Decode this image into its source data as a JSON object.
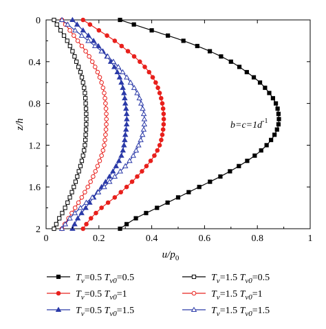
{
  "chart_data": {
    "type": "line",
    "xlabel": "u/p0",
    "xlabel_main": "u/p",
    "xlabel_sub": "0",
    "ylabel": "z/h",
    "xlim": [
      0,
      1
    ],
    "ylim": [
      0,
      2
    ],
    "y_inverted": true,
    "xticks": [
      0,
      0.2,
      0.4,
      0.6,
      0.8,
      1
    ],
    "xtick_labels": [
      "0",
      "0.2",
      "0.4",
      "0.6",
      "0.8",
      "1"
    ],
    "yticks": [
      0,
      0.4,
      0.8,
      1.2,
      1.6,
      2
    ],
    "ytick_labels": [
      "0",
      "0.4",
      "0.8",
      "1.2",
      "1.6",
      "2"
    ],
    "annotation": "b=c=1d-1",
    "annotation_main": "b=c=1d",
    "annotation_sup": "-1",
    "grid": false,
    "legend_position": "bottom, below plot, two columns",
    "series": [
      {
        "name": "Tv=0.5 Tv0=0.5",
        "legend_a": "T",
        "legend_a_sub": "v",
        "legend_a_val": "=0.5",
        "legend_b": "T",
        "legend_b_sub": "v0",
        "legend_b_val": "=0.5",
        "color": "#000000",
        "marker": "square-filled",
        "z": [
          0,
          0.1,
          0.2,
          0.3,
          0.4,
          0.5,
          0.6,
          0.7,
          0.8,
          0.9,
          1.0,
          1.1,
          1.2,
          1.3,
          1.4,
          1.5,
          1.6,
          1.7,
          1.8,
          1.9,
          2.0
        ],
        "u": [
          0.28,
          0.4,
          0.52,
          0.62,
          0.7,
          0.76,
          0.81,
          0.845,
          0.87,
          0.88,
          0.88,
          0.865,
          0.835,
          0.79,
          0.73,
          0.66,
          0.58,
          0.5,
          0.42,
          0.34,
          0.28
        ]
      },
      {
        "name": "Tv=0.5 Tv0=1",
        "legend_a": "T",
        "legend_a_sub": "v",
        "legend_a_val": "=0.5",
        "legend_b": "T",
        "legend_b_sub": "v0",
        "legend_b_val": "=1",
        "color": "#e8201c",
        "marker": "circle-filled",
        "z": [
          0,
          0.1,
          0.2,
          0.3,
          0.4,
          0.5,
          0.6,
          0.7,
          0.8,
          0.9,
          1.0,
          1.1,
          1.2,
          1.3,
          1.4,
          1.5,
          1.6,
          1.7,
          1.8,
          1.9,
          2.0
        ],
        "u": [
          0.14,
          0.2,
          0.26,
          0.31,
          0.355,
          0.39,
          0.415,
          0.43,
          0.44,
          0.445,
          0.445,
          0.44,
          0.43,
          0.41,
          0.38,
          0.345,
          0.305,
          0.26,
          0.21,
          0.17,
          0.14
        ]
      },
      {
        "name": "Tv=0.5 Tv0=1.5",
        "legend_a": "T",
        "legend_a_sub": "v",
        "legend_a_val": "=0.5",
        "legend_b": "T",
        "legend_b_sub": "v0",
        "legend_b_val": "=1.5",
        "color": "#2b3aa8",
        "marker": "triangle-filled",
        "z": [
          0,
          0.1,
          0.2,
          0.3,
          0.4,
          0.5,
          0.6,
          0.7,
          0.8,
          0.9,
          1.0,
          1.1,
          1.2,
          1.3,
          1.4,
          1.5,
          1.6,
          1.7,
          1.8,
          1.9,
          2.0
        ],
        "u": [
          0.1,
          0.14,
          0.18,
          0.215,
          0.245,
          0.27,
          0.285,
          0.295,
          0.3,
          0.305,
          0.305,
          0.3,
          0.295,
          0.285,
          0.265,
          0.24,
          0.21,
          0.18,
          0.15,
          0.12,
          0.1
        ]
      },
      {
        "name": "Tv=1.5 Tv0=0.5",
        "legend_a": "T",
        "legend_a_sub": "v",
        "legend_a_val": "=1.5",
        "legend_b": "T",
        "legend_b_sub": "v0",
        "legend_b_val": "=0.5",
        "color": "#000000",
        "marker": "square-open",
        "z": [
          0,
          0.1,
          0.2,
          0.3,
          0.4,
          0.5,
          0.6,
          0.7,
          0.8,
          0.9,
          1.0,
          1.1,
          1.2,
          1.3,
          1.4,
          1.5,
          1.6,
          1.7,
          1.8,
          1.9,
          2.0
        ],
        "u": [
          0.03,
          0.055,
          0.08,
          0.1,
          0.115,
          0.13,
          0.14,
          0.147,
          0.15,
          0.152,
          0.152,
          0.15,
          0.147,
          0.14,
          0.13,
          0.118,
          0.105,
          0.09,
          0.072,
          0.05,
          0.03
        ]
      },
      {
        "name": "Tv=1.5 Tv0=1",
        "legend_a": "T",
        "legend_a_sub": "v",
        "legend_a_val": "=1.5",
        "legend_b": "T",
        "legend_b_sub": "v0",
        "legend_b_val": "=1",
        "color": "#e8201c",
        "marker": "circle-open",
        "z": [
          0,
          0.1,
          0.2,
          0.3,
          0.4,
          0.5,
          0.6,
          0.7,
          0.8,
          0.9,
          1.0,
          1.1,
          1.2,
          1.3,
          1.4,
          1.5,
          1.6,
          1.7,
          1.8,
          1.9,
          2.0
        ],
        "u": [
          0.06,
          0.09,
          0.12,
          0.15,
          0.175,
          0.195,
          0.21,
          0.22,
          0.225,
          0.228,
          0.228,
          0.225,
          0.22,
          0.21,
          0.195,
          0.178,
          0.158,
          0.135,
          0.11,
          0.085,
          0.06
        ]
      },
      {
        "name": "Tv=1.5 Tv0=1.5",
        "legend_a": "T",
        "legend_a_sub": "v",
        "legend_a_val": "=1.5",
        "legend_b": "T",
        "legend_b_sub": "v0",
        "legend_b_val": "=1.5",
        "color": "#2b3aa8",
        "marker": "triangle-open",
        "z": [
          0,
          0.1,
          0.2,
          0.3,
          0.4,
          0.5,
          0.6,
          0.7,
          0.8,
          0.9,
          1.0,
          1.1,
          1.2,
          1.3,
          1.4,
          1.5,
          1.6,
          1.7,
          1.8,
          1.9,
          2.0
        ],
        "u": [
          0.06,
          0.11,
          0.16,
          0.21,
          0.255,
          0.29,
          0.32,
          0.345,
          0.36,
          0.37,
          0.372,
          0.365,
          0.35,
          0.33,
          0.3,
          0.26,
          0.22,
          0.175,
          0.13,
          0.09,
          0.06
        ]
      }
    ]
  }
}
